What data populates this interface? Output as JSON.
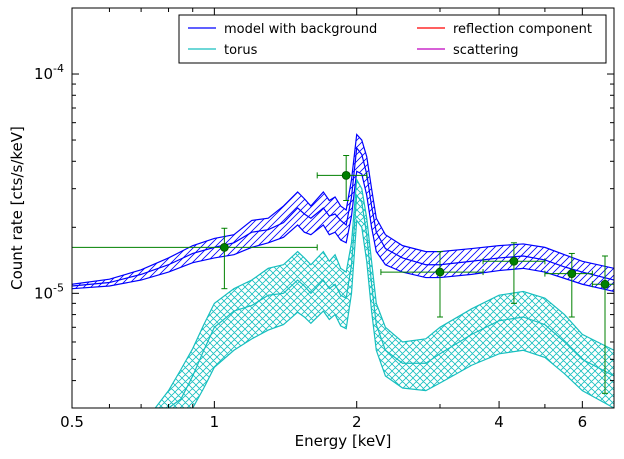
{
  "chart_data": {
    "type": "line",
    "xlabel": "Energy [keV]",
    "ylabel": "Count rate [cts/s/keV]",
    "x_scale": "log",
    "y_scale": "log",
    "xlim": [
      0.5,
      7.0
    ],
    "ylim": [
      3e-06,
      0.0002
    ],
    "grid": false,
    "legend_placement": "top-right",
    "x_ticks": [
      {
        "value": 0.5,
        "label": "0.5"
      },
      {
        "value": 1,
        "label": "1"
      },
      {
        "value": 2,
        "label": "2"
      },
      {
        "value": 4,
        "label": "4"
      },
      {
        "value": 6,
        "label": "6"
      }
    ],
    "y_ticks": [
      {
        "value": 1e-05,
        "base": "10",
        "exp": "-5"
      },
      {
        "value": 0.0001,
        "base": "10",
        "exp": "-4"
      }
    ],
    "legend": [
      {
        "label": "model with background",
        "color": "#0000ff"
      },
      {
        "label": "reflection component",
        "color": "#ff0000"
      },
      {
        "label": "torus",
        "color": "#17bfbf"
      },
      {
        "label": "scattering",
        "color": "#bf00bf"
      }
    ],
    "series": [
      {
        "name": "model with background",
        "color": "#0000ff",
        "hatch": "diagonal",
        "x": [
          0.5,
          0.6,
          0.7,
          0.8,
          0.9,
          1.0,
          1.1,
          1.2,
          1.3,
          1.4,
          1.5,
          1.55,
          1.6,
          1.7,
          1.75,
          1.8,
          1.85,
          1.9,
          1.95,
          2.0,
          2.05,
          2.1,
          2.15,
          2.2,
          2.3,
          2.5,
          2.8,
          3.0,
          3.5,
          4.0,
          4.5,
          5.0,
          5.5,
          6.0,
          7.0
        ],
        "upper": [
          1.1e-05,
          1.16e-05,
          1.28e-05,
          1.45e-05,
          1.65e-05,
          1.78e-05,
          1.85e-05,
          2.15e-05,
          2.2e-05,
          2.5e-05,
          2.9e-05,
          2.7e-05,
          2.5e-05,
          2.9e-05,
          2.65e-05,
          2.75e-05,
          2.5e-05,
          2.4e-05,
          3.3e-05,
          5.3e-05,
          5e-05,
          4.2e-05,
          3e-05,
          2.2e-05,
          1.85e-05,
          1.65e-05,
          1.55e-05,
          1.55e-05,
          1.6e-05,
          1.65e-05,
          1.68e-05,
          1.62e-05,
          1.5e-05,
          1.4e-05,
          1.3e-05
        ],
        "middle": [
          1.08e-05,
          1.12e-05,
          1.22e-05,
          1.35e-05,
          1.52e-05,
          1.62e-05,
          1.7e-05,
          1.9e-05,
          1.95e-05,
          2.1e-05,
          2.45e-05,
          2.3e-05,
          2.2e-05,
          2.45e-05,
          2.25e-05,
          2.3e-05,
          2.15e-05,
          2.05e-05,
          2.75e-05,
          4.6e-05,
          4.3e-05,
          3.5e-05,
          2.5e-05,
          1.9e-05,
          1.6e-05,
          1.45e-05,
          1.35e-05,
          1.35e-05,
          1.4e-05,
          1.45e-05,
          1.48e-05,
          1.42e-05,
          1.32e-05,
          1.25e-05,
          1.15e-05
        ],
        "lower": [
          1.05e-05,
          1.08e-05,
          1.15e-05,
          1.25e-05,
          1.38e-05,
          1.45e-05,
          1.5e-05,
          1.62e-05,
          1.7e-05,
          1.8e-05,
          2.05e-05,
          1.9e-05,
          1.85e-05,
          2.05e-05,
          1.85e-05,
          1.9e-05,
          1.75e-05,
          1.7e-05,
          2.25e-05,
          3.6e-05,
          3.5e-05,
          2.8e-05,
          2e-05,
          1.55e-05,
          1.35e-05,
          1.25e-05,
          1.18e-05,
          1.18e-05,
          1.22e-05,
          1.27e-05,
          1.3e-05,
          1.25e-05,
          1.17e-05,
          1.1e-05,
          1.02e-05
        ]
      },
      {
        "name": "torus",
        "color": "#17bfbf",
        "hatch": "crosshatch",
        "x": [
          0.75,
          0.8,
          0.85,
          0.9,
          0.95,
          1.0,
          1.1,
          1.2,
          1.3,
          1.4,
          1.5,
          1.55,
          1.6,
          1.7,
          1.75,
          1.8,
          1.85,
          1.9,
          1.95,
          2.0,
          2.05,
          2.1,
          2.15,
          2.2,
          2.3,
          2.5,
          2.8,
          3.0,
          3.5,
          4.0,
          4.5,
          5.0,
          5.5,
          6.0,
          7.0
        ],
        "upper": [
          3e-06,
          3.6e-06,
          4.5e-06,
          5.6e-06,
          7.2e-06,
          9e-06,
          1.05e-05,
          1.15e-05,
          1.3e-05,
          1.35e-05,
          1.55e-05,
          1.45e-05,
          1.35e-05,
          1.55e-05,
          1.4e-05,
          1.5e-05,
          1.3e-05,
          1.25e-05,
          1.7e-05,
          3.3e-05,
          3e-05,
          2.2e-05,
          1.4e-05,
          9e-06,
          7e-06,
          6e-06,
          6.2e-06,
          7e-06,
          8.5e-06,
          9.8e-06,
          1.02e-05,
          9.5e-06,
          8e-06,
          6.5e-06,
          5.5e-06
        ],
        "middle": [
          3e-06,
          3e-06,
          3.3e-06,
          4.2e-06,
          5.5e-06,
          7e-06,
          8.3e-06,
          8.8e-06,
          9.8e-06,
          1e-05,
          1.15e-05,
          1.08e-05,
          1e-05,
          1.15e-05,
          1.05e-05,
          1.1e-05,
          9.8e-06,
          9.5e-06,
          1.35e-05,
          2.8e-05,
          2.6e-05,
          1.85e-05,
          1.1e-05,
          7.2e-06,
          5.5e-06,
          4.8e-06,
          4.8e-06,
          5.3e-06,
          6.5e-06,
          7.5e-06,
          7.8e-06,
          7.2e-06,
          6e-06,
          5e-06,
          4.2e-06
        ],
        "lower": [
          3e-06,
          3e-06,
          3e-06,
          3e-06,
          3.7e-06,
          4.6e-06,
          5.5e-06,
          6.2e-06,
          6.8e-06,
          7.2e-06,
          8.2e-06,
          7.8e-06,
          7.3e-06,
          8.3e-06,
          7.6e-06,
          8e-06,
          7.1e-06,
          6.9e-06,
          1e-05,
          2.15e-05,
          2e-05,
          1.4e-05,
          8.3e-06,
          5.5e-06,
          4.2e-06,
          3.7e-06,
          3.6e-06,
          3.9e-06,
          4.7e-06,
          5.3e-06,
          5.5e-06,
          5.1e-06,
          4.3e-06,
          3.6e-06,
          3e-06
        ]
      }
    ],
    "data_points": {
      "name": "data",
      "color": "#008000",
      "points": [
        {
          "x": 1.05,
          "y": 1.62e-05,
          "xerr": [
            0.5,
            1.65
          ],
          "yerr": [
            1.05e-05,
            1.98e-05
          ]
        },
        {
          "x": 1.9,
          "y": 3.45e-05,
          "xerr": [
            1.65,
            2.1
          ],
          "yerr": [
            2.65e-05,
            4.25e-05
          ]
        },
        {
          "x": 3.0,
          "y": 1.25e-05,
          "xerr": [
            2.25,
            3.7
          ],
          "yerr": [
            7.8e-06,
            1.55e-05
          ]
        },
        {
          "x": 4.3,
          "y": 1.4e-05,
          "xerr": [
            3.7,
            5.0
          ],
          "yerr": [
            9e-06,
            1.7e-05
          ]
        },
        {
          "x": 5.7,
          "y": 1.23e-05,
          "xerr": [
            5.0,
            6.3
          ],
          "yerr": [
            7.8e-06,
            1.52e-05
          ]
        },
        {
          "x": 6.7,
          "y": 1.1e-05,
          "xerr": [
            6.3,
            7.0
          ],
          "yerr": [
            3.5e-06,
            1.48e-05
          ]
        }
      ]
    }
  }
}
